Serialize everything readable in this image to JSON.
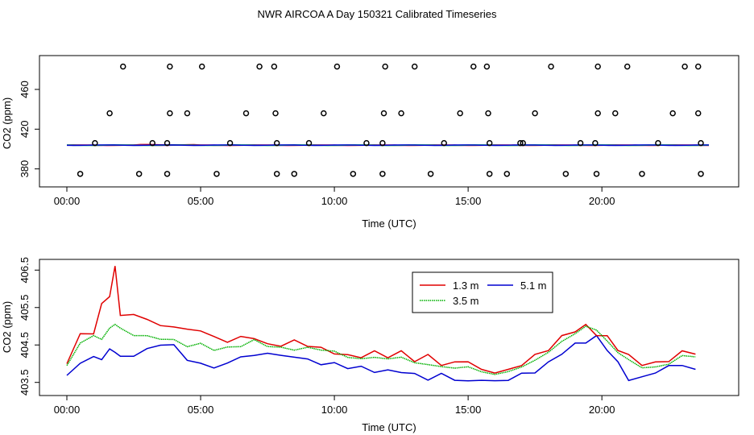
{
  "title": "NWR AIRCOA A  Day 150321  Calibrated Timeseries",
  "colors": {
    "s13": "#e00000",
    "s35": "#00b000",
    "s51": "#0000d0",
    "s_teal": "#00a0a0",
    "s_mag": "#c000c0",
    "axis": "#000000"
  },
  "chart_data": [
    {
      "type": "scatter",
      "title": "",
      "xlabel": "Time (UTC)",
      "ylabel": "CO2 (ppm)",
      "xlim": [
        0,
        24
      ],
      "ylim": [
        370,
        490
      ],
      "xticks": [
        {
          "value": 0,
          "label": "00:00"
        },
        {
          "value": 5,
          "label": "05:00"
        },
        {
          "value": 10,
          "label": "10:00"
        },
        {
          "value": 15,
          "label": "15:00"
        },
        {
          "value": 20,
          "label": "20:00"
        }
      ],
      "yticks": [
        {
          "value": 380,
          "label": "380"
        },
        {
          "value": 420,
          "label": "420"
        },
        {
          "value": 460,
          "label": "460"
        }
      ],
      "baseline": 403.9,
      "outliers": {
        "x": [
          0.5,
          2.1,
          2.7,
          3.75,
          3.85,
          5.05,
          5.6,
          7.2,
          7.75,
          7.85,
          8.5,
          10.1,
          10.7,
          11.8,
          11.9,
          13.0,
          13.6,
          15.2,
          15.7,
          15.8,
          16.45,
          18.1,
          18.65,
          19.8,
          19.85,
          20.95,
          21.5,
          23.1,
          23.6,
          23.7,
          1.6,
          3.85,
          4.5,
          6.7,
          7.8,
          9.6,
          11.85,
          12.5,
          14.7,
          15.75,
          17.5,
          19.85,
          20.5,
          22.65,
          23.6,
          1.05,
          3.2,
          3.75,
          6.1,
          7.85,
          9.05,
          11.2,
          11.8,
          14.1,
          15.8,
          16.95,
          17.05,
          19.2,
          19.75,
          22.1,
          23.7
        ],
        "y": [
          375,
          483,
          375,
          375,
          483,
          483,
          375,
          483,
          483,
          375,
          375,
          483,
          375,
          375,
          483,
          483,
          375,
          483,
          483,
          375,
          375,
          483,
          375,
          375,
          483,
          483,
          375,
          483,
          483,
          375,
          436,
          436,
          436,
          436,
          436,
          436,
          436,
          436,
          436,
          436,
          436,
          436,
          436,
          436,
          436,
          406,
          406,
          406,
          406,
          406,
          406,
          406,
          406,
          406,
          406,
          406,
          406,
          406,
          406,
          406,
          406
        ]
      }
    },
    {
      "type": "line",
      "title": "",
      "xlabel": "Time (UTC)",
      "ylabel": "CO2 (ppm)",
      "xlim": [
        0,
        24
      ],
      "ylim": [
        403.3,
        406.7
      ],
      "xticks": [
        {
          "value": 0,
          "label": "00:00"
        },
        {
          "value": 5,
          "label": "05:00"
        },
        {
          "value": 10,
          "label": "10:00"
        },
        {
          "value": 15,
          "label": "15:00"
        },
        {
          "value": 20,
          "label": "20:00"
        }
      ],
      "yticks": [
        {
          "value": 403.5,
          "label": "403.5"
        },
        {
          "value": 404.5,
          "label": "404.5"
        },
        {
          "value": 405.5,
          "label": "405.5"
        },
        {
          "value": 406.5,
          "label": "406.5"
        }
      ],
      "x": [
        0.0,
        0.5,
        1.0,
        1.3,
        1.6,
        1.8,
        2.0,
        2.5,
        3.0,
        3.5,
        4.0,
        4.5,
        5.0,
        5.5,
        6.0,
        6.5,
        7.0,
        7.5,
        8.0,
        8.5,
        9.0,
        9.5,
        10.0,
        10.5,
        11.0,
        11.5,
        12.0,
        12.5,
        13.0,
        13.5,
        14.0,
        14.5,
        15.0,
        15.5,
        16.0,
        16.5,
        17.0,
        17.5,
        18.0,
        18.5,
        19.0,
        19.4,
        19.8,
        20.2,
        20.6,
        21.0,
        21.5,
        22.0,
        22.5,
        23.0,
        23.5
      ],
      "series": [
        {
          "name": "1.3 m",
          "color": "#e00000",
          "values": [
            404.0,
            404.8,
            404.8,
            405.6,
            405.8,
            406.6,
            405.3,
            405.3,
            405.2,
            405.0,
            405.0,
            404.9,
            404.9,
            404.7,
            404.6,
            404.7,
            404.7,
            404.5,
            404.5,
            404.6,
            404.5,
            404.4,
            404.3,
            404.2,
            404.2,
            404.3,
            404.2,
            404.3,
            404.1,
            404.2,
            404.0,
            404.0,
            404.1,
            403.8,
            403.8,
            403.8,
            404.0,
            404.2,
            404.4,
            404.7,
            404.9,
            405.0,
            404.8,
            404.7,
            404.4,
            404.2,
            404.0,
            404.0,
            404.1,
            404.3,
            404.3
          ]
        },
        {
          "name": "3.5 m",
          "color": "#00b000",
          "values": [
            403.9,
            404.6,
            404.7,
            404.7,
            404.9,
            405.1,
            404.9,
            404.8,
            404.7,
            404.7,
            404.6,
            404.5,
            404.5,
            404.4,
            404.4,
            404.5,
            404.6,
            404.5,
            404.4,
            404.4,
            404.4,
            404.4,
            404.3,
            404.2,
            404.1,
            404.2,
            404.1,
            404.2,
            404.0,
            404.0,
            403.9,
            403.9,
            403.9,
            403.8,
            403.7,
            403.8,
            403.9,
            404.1,
            404.3,
            404.6,
            404.8,
            405.0,
            404.9,
            404.6,
            404.3,
            404.1,
            403.9,
            403.9,
            404.0,
            404.2,
            404.2
          ]
        },
        {
          "name": "5.1 m",
          "color": "#0000d0",
          "values": [
            403.7,
            404.0,
            404.2,
            404.1,
            404.4,
            404.3,
            404.2,
            404.2,
            404.4,
            404.5,
            404.5,
            404.1,
            404.0,
            403.9,
            404.0,
            404.2,
            404.2,
            404.3,
            404.2,
            404.2,
            404.1,
            404.0,
            404.0,
            403.9,
            403.9,
            403.8,
            403.8,
            403.8,
            403.7,
            403.6,
            403.7,
            403.6,
            403.5,
            403.6,
            403.5,
            403.6,
            403.7,
            403.8,
            404.0,
            404.3,
            404.5,
            404.6,
            404.7,
            404.4,
            404.0,
            403.6,
            403.6,
            403.8,
            403.9,
            404.0,
            403.8
          ]
        }
      ],
      "legend": {
        "position": "top-center",
        "entries": [
          "1.3 m",
          "5.1 m",
          "3.5 m"
        ]
      }
    }
  ]
}
